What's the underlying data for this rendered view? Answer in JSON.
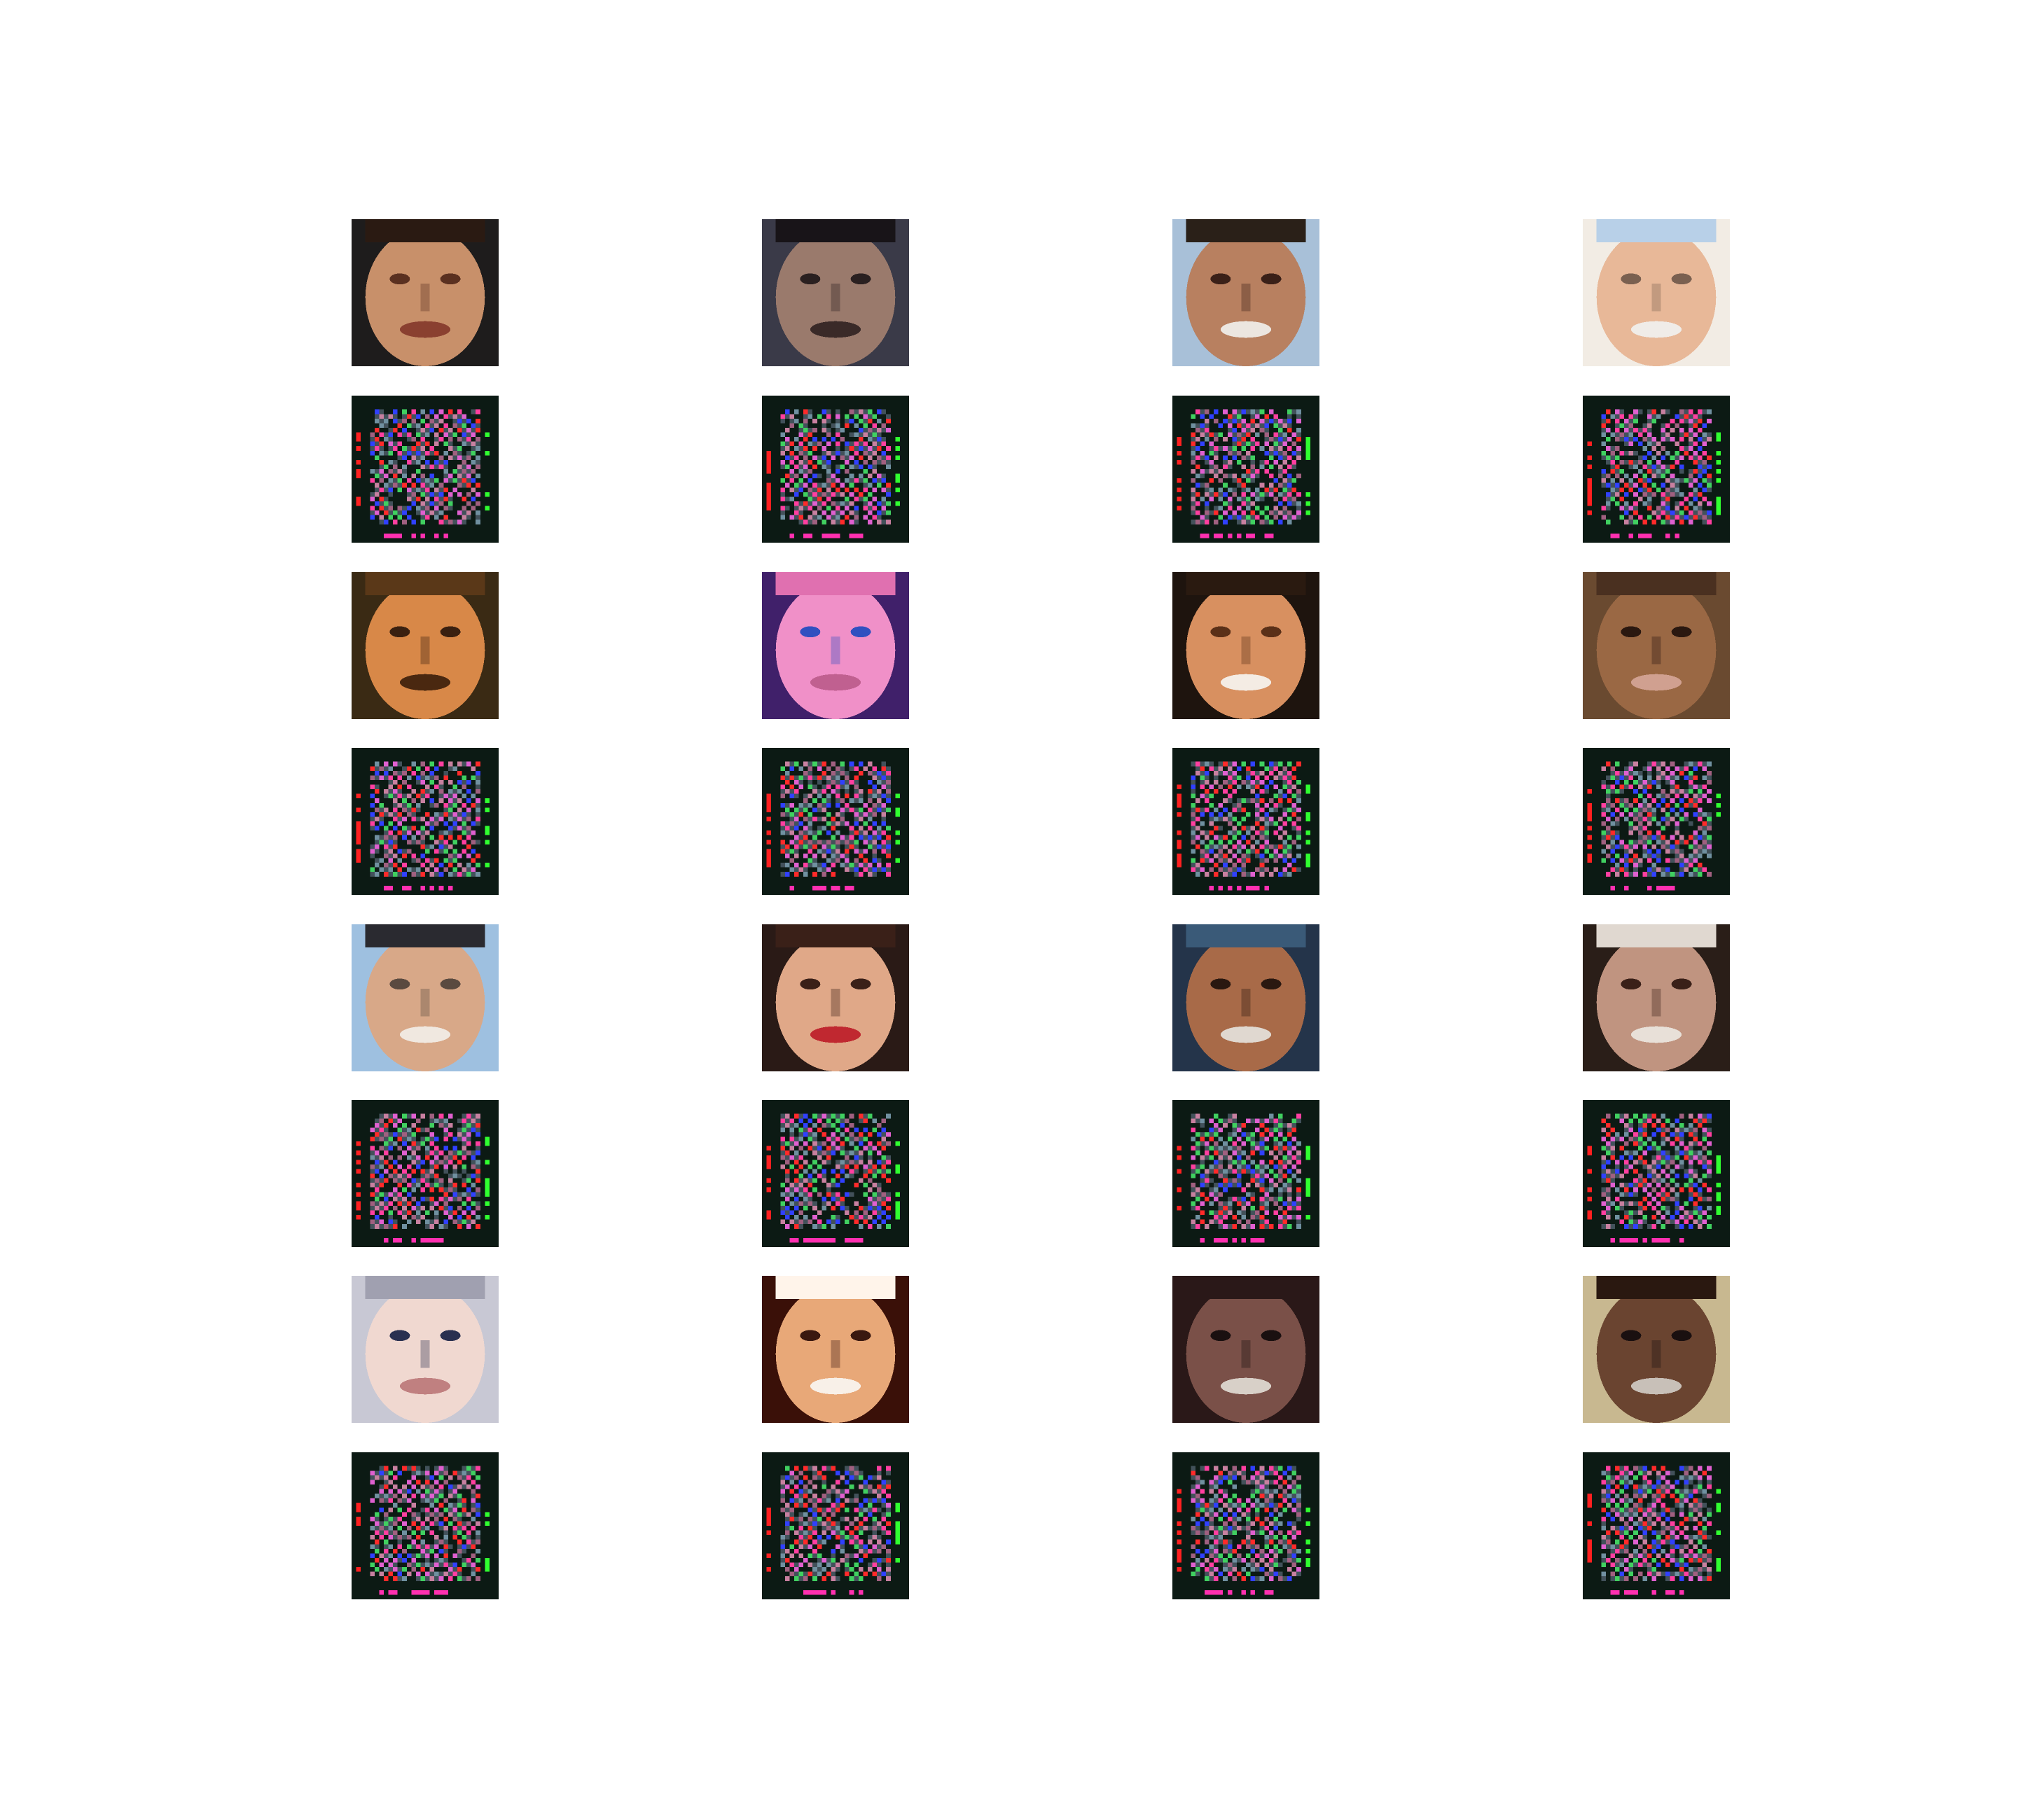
{
  "figure": {
    "background": "#ffffff",
    "grid": {
      "rows": 8,
      "cols": 4
    },
    "row_kinds": [
      "photo",
      "generated",
      "photo",
      "generated",
      "photo",
      "generated",
      "photo",
      "generated"
    ],
    "photo_tiles": [
      {
        "skin": "#c8906a",
        "bg": "#1e1c1c",
        "hair": "#2a1a12",
        "top": "#2a1a12",
        "feature": "#5a3020",
        "mouth": "#8a4030"
      },
      {
        "skin": "#9a7a6c",
        "bg": "#3a3a48",
        "hair": "#1a1418",
        "top": "#181418",
        "feature": "#2a2020",
        "mouth": "#3a2a28"
      },
      {
        "skin": "#b88060",
        "bg": "#a8c0d8",
        "hair": "#1a1410",
        "top": "#2a2018",
        "feature": "#3a2018",
        "mouth": "#ece6e0"
      },
      {
        "skin": "#e8b898",
        "bg": "#f2ece4",
        "hair": "#d8c8a0",
        "top": "#b8d0e8",
        "feature": "#7a6050",
        "mouth": "#f0ece8"
      },
      {
        "skin": "#d88848",
        "bg": "#3a2a14",
        "hair": "#5a3818",
        "top": "#5a3818",
        "feature": "#3a2010",
        "mouth": "#4a2810"
      },
      {
        "skin": "#f090c8",
        "bg": "#40206a",
        "hair": "#3a2838",
        "top": "#e070b0",
        "feature": "#3050c0",
        "mouth": "#c06090"
      },
      {
        "skin": "#d89060",
        "bg": "#1e140e",
        "hair": "#2a1a10",
        "top": "#2a1a10",
        "feature": "#5a3018",
        "mouth": "#f4ece4"
      },
      {
        "skin": "#9a6844",
        "bg": "#6a4a30",
        "hair": "#3a2618",
        "top": "#4a3020",
        "feature": "#2a1810",
        "mouth": "#d0a090"
      },
      {
        "skin": "#d8a888",
        "bg": "#9ec0e0",
        "hair": "#e0e0e0",
        "top": "#2a2a30",
        "feature": "#5a4a40",
        "mouth": "#f0e8e0"
      },
      {
        "skin": "#e0a888",
        "bg": "#2a1a16",
        "hair": "#4a2818",
        "top": "#3a2018",
        "feature": "#3a2018",
        "mouth": "#c02830"
      },
      {
        "skin": "#a86a48",
        "bg": "#24344a",
        "hair": "#1a1210",
        "top": "#3a5a78",
        "feature": "#2a1810",
        "mouth": "#e0d8d0"
      },
      {
        "skin": "#c09480",
        "bg": "#2a1e18",
        "hair": "#1a1410",
        "top": "#e0d8d0",
        "feature": "#3a2018",
        "mouth": "#e8e0d8"
      },
      {
        "skin": "#f0d8d0",
        "bg": "#c8c8d4",
        "hair": "#e8e4e4",
        "top": "#a0a0b0",
        "feature": "#2a3050",
        "mouth": "#c08080"
      },
      {
        "skin": "#e8a878",
        "bg": "#3a1008",
        "hair": "#5a2010",
        "top": "#fff4ea",
        "feature": "#3a1810",
        "mouth": "#f8f0e8"
      },
      {
        "skin": "#7a5048",
        "bg": "#2a1818",
        "hair": "#3a2420",
        "top": "#2a1818",
        "feature": "#1a1010",
        "mouth": "#d8d0c8"
      },
      {
        "skin": "#6a4430",
        "bg": "#c8b890",
        "hair": "#1a1410",
        "top": "#2a1810",
        "feature": "#1a1010",
        "mouth": "#c8c0b8"
      }
    ],
    "generated_tiles": [
      {
        "seed": 11
      },
      {
        "seed": 23
      },
      {
        "seed": 37
      },
      {
        "seed": 41
      },
      {
        "seed": 53
      },
      {
        "seed": 67
      },
      {
        "seed": 71
      },
      {
        "seed": 83
      },
      {
        "seed": 97
      },
      {
        "seed": 101
      },
      {
        "seed": 113
      },
      {
        "seed": 127
      },
      {
        "seed": 131
      },
      {
        "seed": 149
      },
      {
        "seed": 157
      },
      {
        "seed": 163
      }
    ],
    "generated_palette": {
      "background": "#0c1a14",
      "dot_colors": [
        "#ff3fa0",
        "#3040ff",
        "#40d060",
        "#c880a0",
        "#7090a0",
        "#a06080",
        "#ff2a2a",
        "#e060d0"
      ],
      "edge_red": "#ff2020",
      "edge_green": "#30ff30",
      "bottom_magenta": "#ff30b0"
    }
  }
}
